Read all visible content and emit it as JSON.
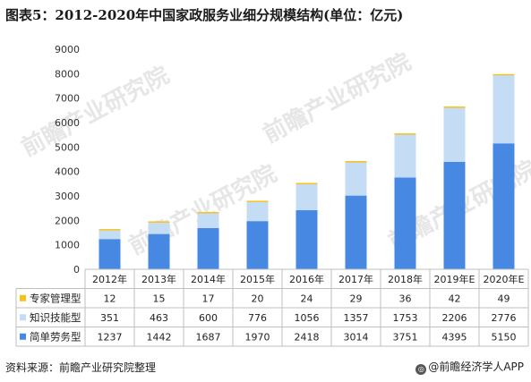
{
  "title": "图表5：2012-2020年中国家政服务业细分规模结构(单位：亿元)",
  "source": "资料来源：前瞻产业研究院整理",
  "brand": "@前瞻经济学人APP",
  "watermark": "前瞻产业研究院",
  "colors": {
    "series": [
      "#f3c21b",
      "#c5dcf5",
      "#4688e2"
    ],
    "grid": "#e0e0e0",
    "table": "#bfbfbf"
  },
  "chart_data": {
    "type": "bar",
    "stacked": true,
    "categories": [
      "2012年",
      "2013年",
      "2014年",
      "2015年",
      "2016年",
      "2017年",
      "2018年",
      "2019年E",
      "2020年E"
    ],
    "series": [
      {
        "name": "专家管理型",
        "values": [
          12,
          15,
          17,
          20,
          24,
          29,
          36,
          42,
          49
        ]
      },
      {
        "name": "知识技能型",
        "values": [
          351,
          463,
          600,
          776,
          1056,
          1357,
          1753,
          2206,
          2776
        ]
      },
      {
        "name": "简单劳务型",
        "values": [
          1237,
          1442,
          1687,
          1970,
          2418,
          3014,
          3751,
          4395,
          5150
        ]
      }
    ],
    "ylim": [
      0,
      9000
    ],
    "yticks": [
      0,
      1000,
      2000,
      3000,
      4000,
      5000,
      6000,
      7000,
      8000,
      9000
    ],
    "grid": false,
    "legend": "data-table"
  }
}
